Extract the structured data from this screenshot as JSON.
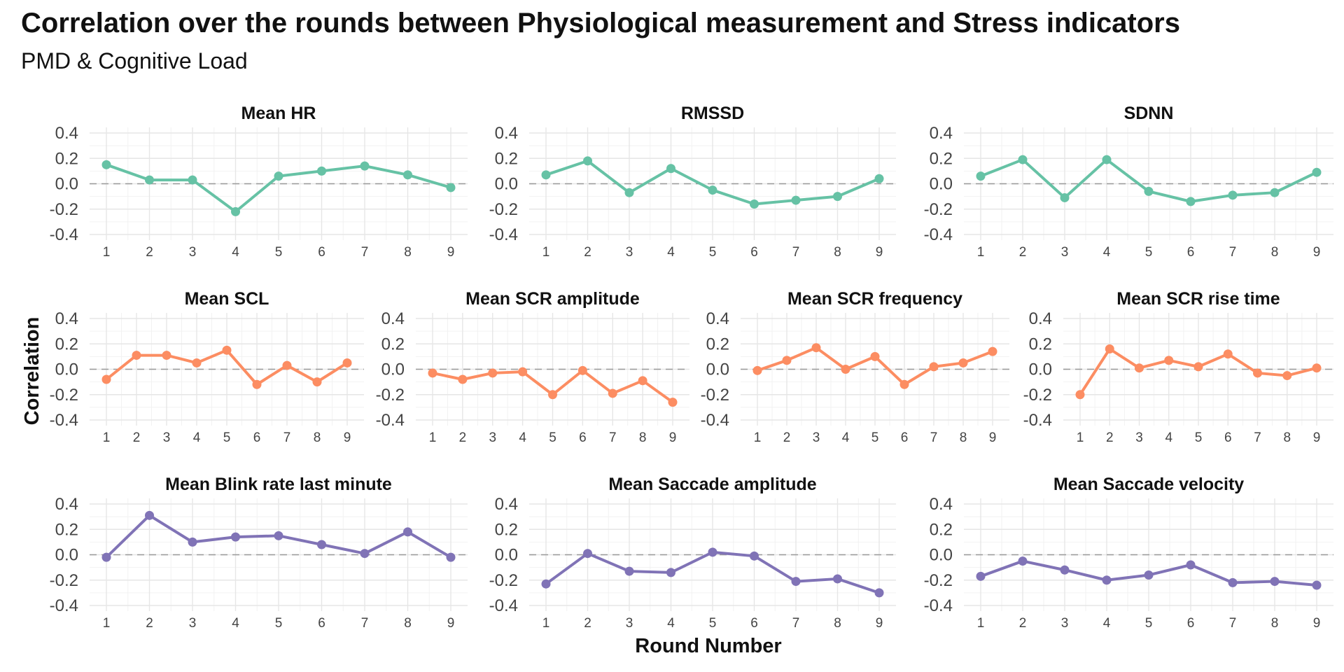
{
  "title": "Correlation over the rounds between Physiological measurement and Stress indicators",
  "subtitle": "PMD & Cognitive Load",
  "xlabel": "Round Number",
  "ylabel": "Correlation",
  "colors": {
    "hr_group": "#66c2a5",
    "scr_group": "#fc8d62",
    "eye_group": "#8073b6"
  },
  "chart_data": {
    "type": "line",
    "x": [
      1,
      2,
      3,
      4,
      5,
      6,
      7,
      8,
      9
    ],
    "xlabel": "Round Number",
    "ylabel": "Correlation",
    "ylim": [
      -0.4,
      0.4
    ],
    "y_ticks": [
      0.4,
      0.2,
      0.0,
      -0.2,
      -0.4
    ],
    "y_tick_labels": [
      "0.4",
      "0.2",
      "0.0",
      "-0.2",
      "-0.4"
    ],
    "x_tick_labels": [
      "1",
      "2",
      "3",
      "4",
      "5",
      "6",
      "7",
      "8",
      "9"
    ],
    "reference_line": 0,
    "grid": true,
    "legend": "none",
    "rows": [
      {
        "color": "#66c2a5",
        "panels": [
          {
            "title": "Mean HR",
            "values": [
              0.15,
              0.03,
              0.03,
              -0.22,
              0.06,
              0.1,
              0.14,
              0.07,
              -0.03
            ]
          },
          {
            "title": "RMSSD",
            "values": [
              0.07,
              0.18,
              -0.07,
              0.12,
              -0.05,
              -0.16,
              -0.13,
              -0.1,
              0.04
            ]
          },
          {
            "title": "SDNN",
            "values": [
              0.06,
              0.19,
              -0.11,
              0.19,
              -0.06,
              -0.14,
              -0.09,
              -0.07,
              0.09
            ]
          }
        ]
      },
      {
        "color": "#fc8d62",
        "panels": [
          {
            "title": "Mean SCL",
            "values": [
              -0.08,
              0.11,
              0.11,
              0.05,
              0.15,
              -0.12,
              0.03,
              -0.1,
              0.05
            ]
          },
          {
            "title": "Mean SCR amplitude",
            "values": [
              -0.03,
              -0.08,
              -0.03,
              -0.02,
              -0.2,
              -0.01,
              -0.19,
              -0.09,
              -0.26
            ]
          },
          {
            "title": "Mean SCR frequency",
            "values": [
              -0.01,
              0.07,
              0.17,
              0.0,
              0.1,
              -0.12,
              0.02,
              0.05,
              0.14
            ]
          },
          {
            "title": "Mean SCR rise time",
            "values": [
              -0.2,
              0.16,
              0.01,
              0.07,
              0.02,
              0.12,
              -0.03,
              -0.05,
              0.01
            ]
          }
        ]
      },
      {
        "color": "#8073b6",
        "panels": [
          {
            "title": "Mean Blink rate last minute",
            "values": [
              -0.02,
              0.31,
              0.1,
              0.14,
              0.15,
              0.08,
              0.01,
              0.18,
              -0.02
            ]
          },
          {
            "title": "Mean Saccade amplitude",
            "values": [
              -0.23,
              0.01,
              -0.13,
              -0.14,
              0.02,
              -0.01,
              -0.21,
              -0.19,
              -0.3
            ]
          },
          {
            "title": "Mean Saccade velocity",
            "values": [
              -0.17,
              -0.05,
              -0.12,
              -0.2,
              -0.16,
              -0.08,
              -0.22,
              -0.21,
              -0.24
            ]
          }
        ]
      }
    ]
  }
}
